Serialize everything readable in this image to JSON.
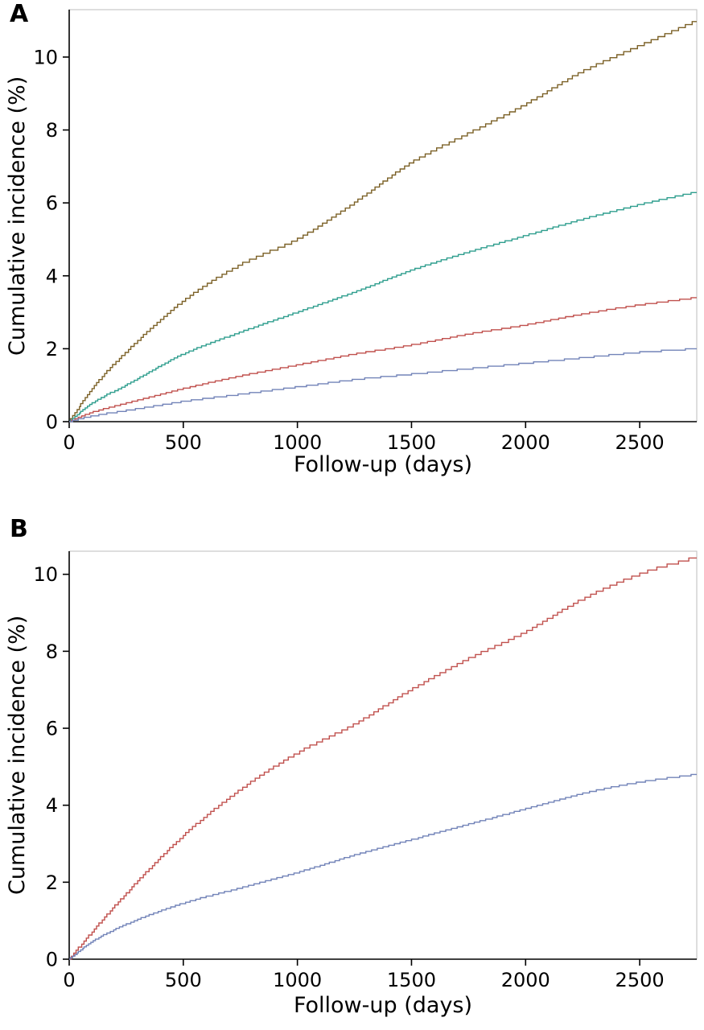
{
  "chart_data": [
    {
      "type": "line",
      "panel_label": "A",
      "subtype": "cumulative-incidence-step-curves",
      "xlabel": "Follow-up (days)",
      "ylabel": "Cumulative incidence (%)",
      "xlim": [
        0,
        2750
      ],
      "ylim": [
        0,
        11.3
      ],
      "xticks": [
        0,
        500,
        1000,
        1500,
        2000,
        2500
      ],
      "yticks": [
        0,
        2,
        4,
        6,
        8,
        10
      ],
      "grid": "off",
      "legend": "none",
      "frame_color": "#bdbdbd",
      "axis_color": "#000000",
      "x": [
        0,
        100,
        250,
        500,
        750,
        1000,
        1250,
        1500,
        1750,
        2000,
        2250,
        2500,
        2750
      ],
      "series": [
        {
          "name": "series-brown",
          "color": "#7b6026",
          "values": [
            0,
            0.9,
            1.9,
            3.3,
            4.3,
            5.0,
            6.0,
            7.1,
            7.9,
            8.7,
            9.6,
            10.3,
            11.0
          ]
        },
        {
          "name": "series-teal",
          "color": "#2f9e8e",
          "values": [
            0,
            0.5,
            1.0,
            1.85,
            2.45,
            3.0,
            3.55,
            4.15,
            4.65,
            5.1,
            5.55,
            5.95,
            6.3
          ]
        },
        {
          "name": "series-red",
          "color": "#c0504d",
          "values": [
            0,
            0.25,
            0.5,
            0.9,
            1.25,
            1.55,
            1.85,
            2.1,
            2.4,
            2.65,
            2.95,
            3.2,
            3.4
          ]
        },
        {
          "name": "series-blue",
          "color": "#7283b8",
          "values": [
            0,
            0.15,
            0.3,
            0.55,
            0.75,
            0.95,
            1.15,
            1.3,
            1.45,
            1.6,
            1.75,
            1.9,
            2.0
          ]
        }
      ]
    },
    {
      "type": "line",
      "panel_label": "B",
      "subtype": "cumulative-incidence-step-curves",
      "xlabel": "Follow-up (days)",
      "ylabel": "Cumulative incidence (%)",
      "xlim": [
        0,
        2750
      ],
      "ylim": [
        0,
        10.6
      ],
      "xticks": [
        0,
        500,
        1000,
        1500,
        2000,
        2500
      ],
      "yticks": [
        0,
        2,
        4,
        6,
        8,
        10
      ],
      "grid": "off",
      "legend": "none",
      "frame_color": "#bdbdbd",
      "axis_color": "#000000",
      "x": [
        0,
        100,
        250,
        500,
        750,
        1000,
        1250,
        1500,
        1750,
        2000,
        2250,
        2500,
        2750
      ],
      "series": [
        {
          "name": "series-red",
          "color": "#c0504d",
          "values": [
            0,
            0.7,
            1.7,
            3.2,
            4.4,
            5.35,
            6.1,
            7.0,
            7.8,
            8.5,
            9.35,
            10.0,
            10.45
          ]
        },
        {
          "name": "series-blue",
          "color": "#7283b8",
          "values": [
            0,
            0.45,
            0.9,
            1.45,
            1.85,
            2.25,
            2.7,
            3.1,
            3.5,
            3.9,
            4.3,
            4.6,
            4.8
          ]
        }
      ]
    }
  ]
}
